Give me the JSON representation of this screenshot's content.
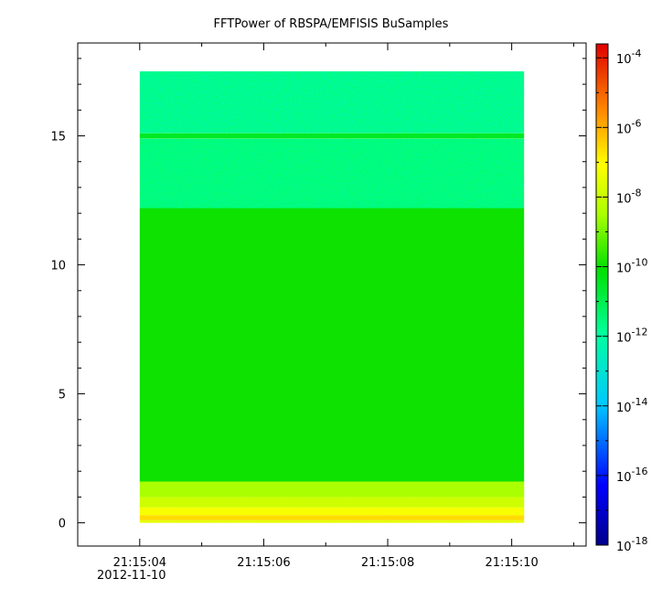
{
  "chart_data": {
    "type": "heatmap",
    "title": "FFTPower of RBSPA/EMFISIS  BuSamples",
    "xlabel": "",
    "ylabel": "",
    "x_tick_labels": [
      "21:15:04",
      "21:15:06",
      "21:15:08",
      "21:15:10"
    ],
    "x_tick_values_sec": [
      4,
      6,
      8,
      10
    ],
    "x_date_label": "2012-11-10",
    "xlim_sec": [
      3.0,
      11.2
    ],
    "data_x_range_sec": [
      4.0,
      10.2
    ],
    "y_ticks": [
      0,
      5,
      10,
      15
    ],
    "ylim": [
      -0.9,
      18.6
    ],
    "data_y_range": [
      0,
      17.5
    ],
    "colorbar": {
      "scale": "log",
      "range_exponent": [
        -18,
        -3.6
      ],
      "tick_exponents": [
        -4,
        -6,
        -8,
        -10,
        -12,
        -14,
        -16,
        -18
      ],
      "tick_base": "10"
    },
    "bands": [
      {
        "y": [
          0.0,
          0.1
        ],
        "log10_power": -7.5
      },
      {
        "y": [
          0.1,
          0.3
        ],
        "log10_power": -6.6
      },
      {
        "y": [
          0.3,
          0.6
        ],
        "log10_power": -7.2
      },
      {
        "y": [
          0.6,
          1.0
        ],
        "log10_power": -7.9
      },
      {
        "y": [
          1.0,
          1.6
        ],
        "log10_power": -8.5
      },
      {
        "y": [
          1.6,
          12.2
        ],
        "log10_power": -10.0
      },
      {
        "y": [
          12.2,
          14.9
        ],
        "log10_power": -11.8
      },
      {
        "y": [
          14.9,
          15.1
        ],
        "log10_power": -10.6
      },
      {
        "y": [
          15.1,
          17.5
        ],
        "log10_power": -12.1
      }
    ],
    "grid": false
  }
}
